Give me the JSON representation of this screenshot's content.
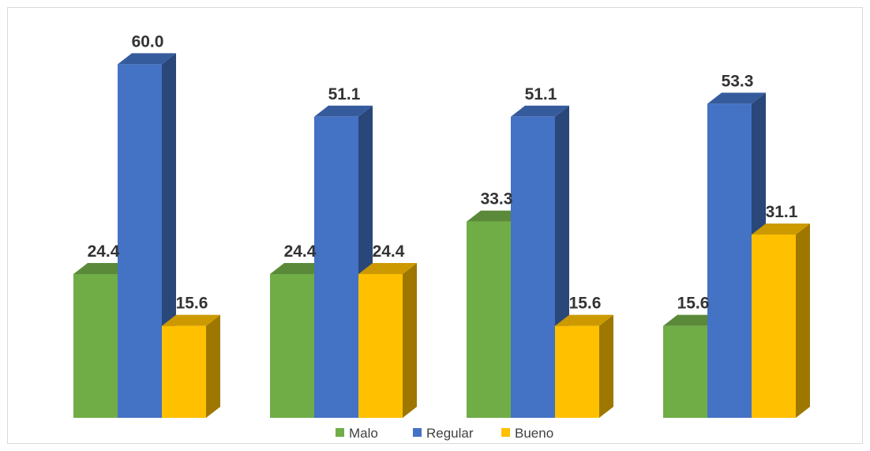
{
  "chart_data": {
    "type": "bar",
    "title": "",
    "xlabel": "",
    "ylabel": "",
    "ylim": [
      0,
      60
    ],
    "grid": false,
    "legend": "bottom",
    "categories": [
      "",
      "",
      "",
      ""
    ],
    "series": [
      {
        "name": "Malo",
        "color": "#70ad47",
        "values": [
          24.4,
          24.4,
          33.3,
          15.6
        ]
      },
      {
        "name": "Regular",
        "color": "#4472c4",
        "values": [
          60.0,
          51.1,
          51.1,
          53.3
        ]
      },
      {
        "name": "Bueno",
        "color": "#ffc000",
        "values": [
          15.6,
          24.4,
          15.6,
          31.1
        ]
      }
    ],
    "labels": [
      [
        "24.4",
        "60.0",
        "15.6"
      ],
      [
        "24.4",
        "51.1",
        "24.4"
      ],
      [
        "33.3",
        "51.1",
        "15.6"
      ],
      [
        "15.6",
        "53.3",
        "31.1"
      ]
    ]
  }
}
